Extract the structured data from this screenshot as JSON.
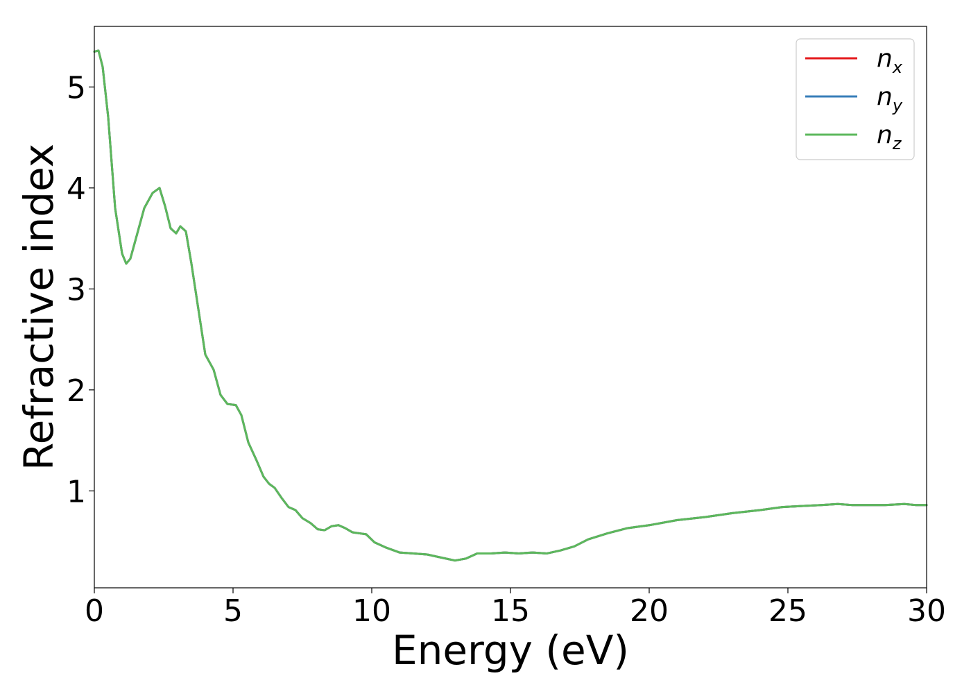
{
  "chart_data": {
    "type": "line",
    "xlabel": "Energy (eV)",
    "ylabel": "Refractive index",
    "xlim": [
      0,
      30
    ],
    "ylim": [
      0.04,
      5.6
    ],
    "x_ticks": [
      0,
      5,
      10,
      15,
      20,
      25,
      30
    ],
    "y_ticks": [
      1,
      2,
      3,
      4,
      5
    ],
    "grid": false,
    "legend_position": "top-right",
    "series": [
      {
        "name": "n_x",
        "label_main": "n",
        "label_sub": "x",
        "color": "#e41a1c",
        "x": [
          0,
          0.15,
          0.3,
          0.5,
          0.75,
          1.0,
          1.15,
          1.3,
          1.5,
          1.8,
          2.1,
          2.35,
          2.55,
          2.75,
          2.95,
          3.1,
          3.3,
          3.5,
          3.75,
          4.0,
          4.3,
          4.55,
          4.8,
          5.1,
          5.3,
          5.55,
          5.85,
          6.1,
          6.3,
          6.5,
          6.75,
          7.0,
          7.25,
          7.5,
          7.8,
          8.05,
          8.3,
          8.55,
          8.8,
          9.05,
          9.3,
          9.55,
          9.8,
          10.1,
          10.5,
          11.0,
          11.5,
          12.0,
          12.5,
          13.0,
          13.4,
          13.8,
          14.3,
          14.8,
          15.3,
          15.8,
          16.3,
          16.8,
          17.3,
          17.8,
          18.5,
          19.2,
          20.0,
          21.0,
          22.0,
          23.0,
          24.0,
          24.8,
          25.5,
          26.2,
          26.8,
          27.3,
          27.8,
          28.5,
          29.2,
          29.6,
          30.0
        ],
        "y": [
          5.35,
          5.36,
          5.2,
          4.7,
          3.8,
          3.35,
          3.25,
          3.3,
          3.5,
          3.8,
          3.95,
          4.0,
          3.82,
          3.6,
          3.55,
          3.62,
          3.57,
          3.25,
          2.8,
          2.35,
          2.2,
          1.95,
          1.86,
          1.85,
          1.75,
          1.48,
          1.3,
          1.14,
          1.07,
          1.03,
          0.93,
          0.84,
          0.81,
          0.73,
          0.68,
          0.62,
          0.61,
          0.65,
          0.66,
          0.63,
          0.59,
          0.58,
          0.57,
          0.49,
          0.44,
          0.39,
          0.38,
          0.37,
          0.34,
          0.31,
          0.33,
          0.38,
          0.38,
          0.39,
          0.38,
          0.39,
          0.38,
          0.41,
          0.45,
          0.52,
          0.58,
          0.63,
          0.66,
          0.71,
          0.74,
          0.78,
          0.81,
          0.84,
          0.85,
          0.86,
          0.87,
          0.86,
          0.86,
          0.86,
          0.87,
          0.86,
          0.86
        ]
      },
      {
        "name": "n_y",
        "label_main": "n",
        "label_sub": "y",
        "color": "#377eb8",
        "x": [
          0,
          0.15,
          0.3,
          0.5,
          0.75,
          1.0,
          1.15,
          1.3,
          1.5,
          1.8,
          2.1,
          2.35,
          2.55,
          2.75,
          2.95,
          3.1,
          3.3,
          3.5,
          3.75,
          4.0,
          4.3,
          4.55,
          4.8,
          5.1,
          5.3,
          5.55,
          5.85,
          6.1,
          6.3,
          6.5,
          6.75,
          7.0,
          7.25,
          7.5,
          7.8,
          8.05,
          8.3,
          8.55,
          8.8,
          9.05,
          9.3,
          9.55,
          9.8,
          10.1,
          10.5,
          11.0,
          11.5,
          12.0,
          12.5,
          13.0,
          13.4,
          13.8,
          14.3,
          14.8,
          15.3,
          15.8,
          16.3,
          16.8,
          17.3,
          17.8,
          18.5,
          19.2,
          20.0,
          21.0,
          22.0,
          23.0,
          24.0,
          24.8,
          25.5,
          26.2,
          26.8,
          27.3,
          27.8,
          28.5,
          29.2,
          29.6,
          30.0
        ],
        "y": [
          5.35,
          5.36,
          5.2,
          4.7,
          3.8,
          3.35,
          3.25,
          3.3,
          3.5,
          3.8,
          3.95,
          4.0,
          3.82,
          3.6,
          3.55,
          3.62,
          3.57,
          3.25,
          2.8,
          2.35,
          2.2,
          1.95,
          1.86,
          1.85,
          1.75,
          1.48,
          1.3,
          1.14,
          1.07,
          1.03,
          0.93,
          0.84,
          0.81,
          0.73,
          0.68,
          0.62,
          0.61,
          0.65,
          0.66,
          0.63,
          0.59,
          0.58,
          0.57,
          0.49,
          0.44,
          0.39,
          0.38,
          0.37,
          0.34,
          0.31,
          0.33,
          0.38,
          0.38,
          0.39,
          0.38,
          0.39,
          0.38,
          0.41,
          0.45,
          0.52,
          0.58,
          0.63,
          0.66,
          0.71,
          0.74,
          0.78,
          0.81,
          0.84,
          0.85,
          0.86,
          0.87,
          0.86,
          0.86,
          0.86,
          0.87,
          0.86,
          0.86
        ]
      },
      {
        "name": "n_z",
        "label_main": "n",
        "label_sub": "z",
        "color": "#5cb85c",
        "x": [
          0,
          0.15,
          0.3,
          0.5,
          0.75,
          1.0,
          1.15,
          1.3,
          1.5,
          1.8,
          2.1,
          2.35,
          2.55,
          2.75,
          2.95,
          3.1,
          3.3,
          3.5,
          3.75,
          4.0,
          4.3,
          4.55,
          4.8,
          5.1,
          5.3,
          5.55,
          5.85,
          6.1,
          6.3,
          6.5,
          6.75,
          7.0,
          7.25,
          7.5,
          7.8,
          8.05,
          8.3,
          8.55,
          8.8,
          9.05,
          9.3,
          9.55,
          9.8,
          10.1,
          10.5,
          11.0,
          11.5,
          12.0,
          12.5,
          13.0,
          13.4,
          13.8,
          14.3,
          14.8,
          15.3,
          15.8,
          16.3,
          16.8,
          17.3,
          17.8,
          18.5,
          19.2,
          20.0,
          21.0,
          22.0,
          23.0,
          24.0,
          24.8,
          25.5,
          26.2,
          26.8,
          27.3,
          27.8,
          28.5,
          29.2,
          29.6,
          30.0
        ],
        "y": [
          5.35,
          5.36,
          5.2,
          4.7,
          3.8,
          3.35,
          3.25,
          3.3,
          3.5,
          3.8,
          3.95,
          4.0,
          3.82,
          3.6,
          3.55,
          3.62,
          3.57,
          3.25,
          2.8,
          2.35,
          2.2,
          1.95,
          1.86,
          1.85,
          1.75,
          1.48,
          1.3,
          1.14,
          1.07,
          1.03,
          0.93,
          0.84,
          0.81,
          0.73,
          0.68,
          0.62,
          0.61,
          0.65,
          0.66,
          0.63,
          0.59,
          0.58,
          0.57,
          0.49,
          0.44,
          0.39,
          0.38,
          0.37,
          0.34,
          0.31,
          0.33,
          0.38,
          0.38,
          0.39,
          0.38,
          0.39,
          0.38,
          0.41,
          0.45,
          0.52,
          0.58,
          0.63,
          0.66,
          0.71,
          0.74,
          0.78,
          0.81,
          0.84,
          0.85,
          0.86,
          0.87,
          0.86,
          0.86,
          0.86,
          0.87,
          0.86,
          0.86
        ]
      }
    ]
  }
}
